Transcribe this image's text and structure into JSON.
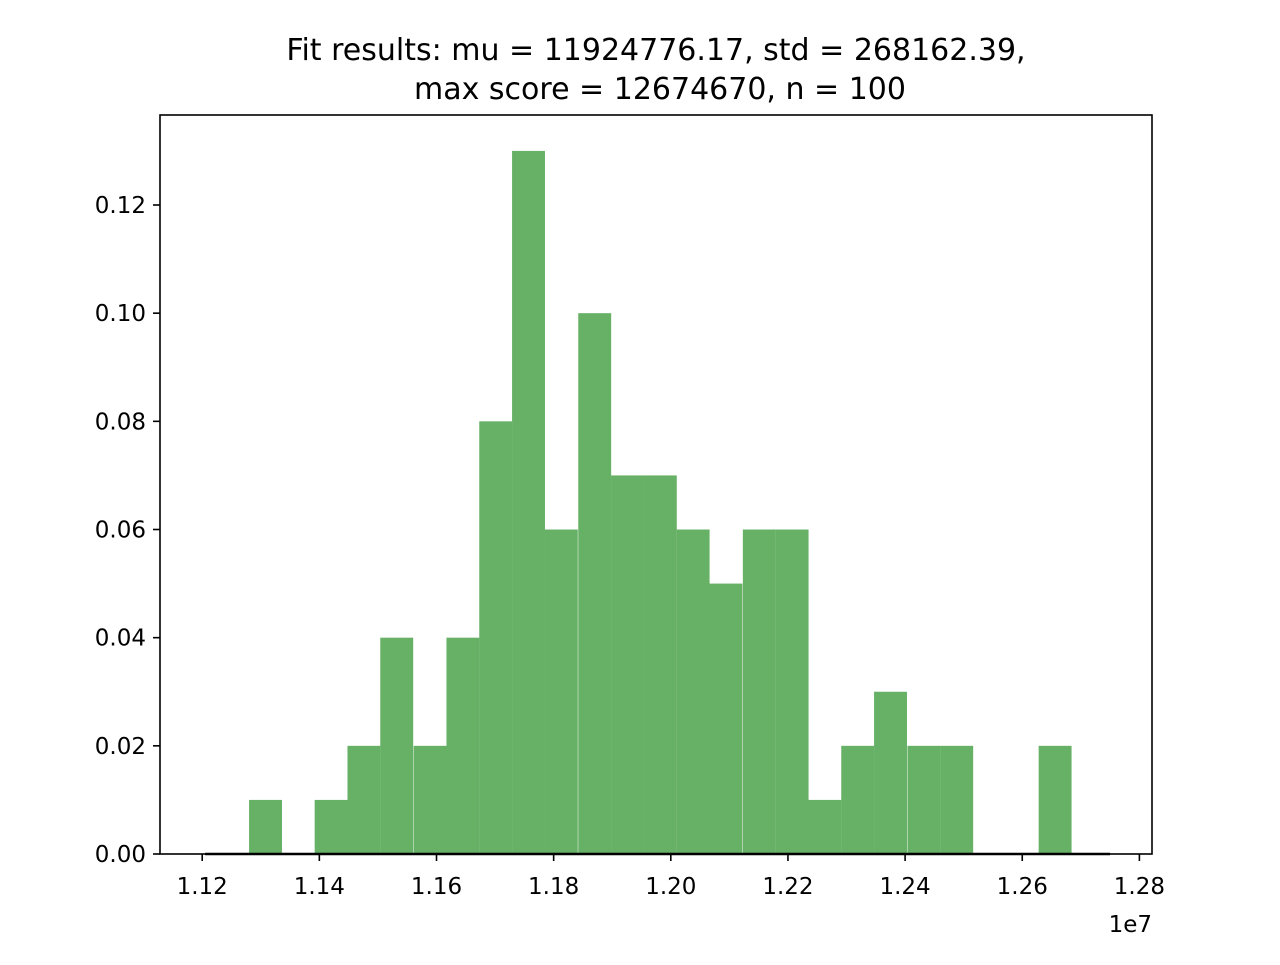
{
  "chart_data": {
    "type": "histogram",
    "title_lines": [
      "Fit results: mu = 11924776.17,  std = 268162.39,",
      "max score = 12674670, n = 100"
    ],
    "xlabel": "",
    "ylabel": "",
    "x_offset_label": "1e7",
    "xlim": [
      11.13,
      12.82
    ],
    "ylim": [
      0.0,
      0.1315
    ],
    "x_scale_factor": 10000000.0,
    "x_ticks": [
      1.12,
      1.14,
      1.16,
      1.18,
      1.2,
      1.22,
      1.24,
      1.26,
      1.28
    ],
    "x_tick_labels": [
      "1.12",
      "1.14",
      "1.16",
      "1.18",
      "1.20",
      "1.22",
      "1.24",
      "1.26",
      "1.28"
    ],
    "y_ticks": [
      0.0,
      0.02,
      0.04,
      0.06,
      0.08,
      0.1,
      0.12
    ],
    "y_tick_labels": [
      "0.00",
      "0.02",
      "0.04",
      "0.06",
      "0.08",
      "0.10",
      "0.12"
    ],
    "bin_width": 0.00562,
    "bins": [
      {
        "x0": 1.128,
        "height": 0.01
      },
      {
        "x0": 1.1336,
        "height": 0.0
      },
      {
        "x0": 1.1392,
        "height": 0.01
      },
      {
        "x0": 1.1448,
        "height": 0.02
      },
      {
        "x0": 1.1504,
        "height": 0.04
      },
      {
        "x0": 1.1561,
        "height": 0.02
      },
      {
        "x0": 1.1617,
        "height": 0.04
      },
      {
        "x0": 1.1673,
        "height": 0.08
      },
      {
        "x0": 1.1729,
        "height": 0.13
      },
      {
        "x0": 1.1785,
        "height": 0.06
      },
      {
        "x0": 1.1842,
        "height": 0.1
      },
      {
        "x0": 1.1898,
        "height": 0.07
      },
      {
        "x0": 1.1954,
        "height": 0.07
      },
      {
        "x0": 1.201,
        "height": 0.06
      },
      {
        "x0": 1.2066,
        "height": 0.05
      },
      {
        "x0": 1.2123,
        "height": 0.06
      },
      {
        "x0": 1.2179,
        "height": 0.06
      },
      {
        "x0": 1.2235,
        "height": 0.01
      },
      {
        "x0": 1.2291,
        "height": 0.02
      },
      {
        "x0": 1.2347,
        "height": 0.03
      },
      {
        "x0": 1.2404,
        "height": 0.02
      },
      {
        "x0": 1.246,
        "height": 0.02
      },
      {
        "x0": 1.2516,
        "height": 0.0
      },
      {
        "x0": 1.2572,
        "height": 0.0
      },
      {
        "x0": 1.2628,
        "height": 0.02
      }
    ],
    "fit_line": {
      "x_start": 1.1205,
      "x_end": 1.275,
      "y": 0.0
    },
    "bar_color": "#67b167",
    "line_color": "#000000",
    "grid": false,
    "legend": "none"
  }
}
